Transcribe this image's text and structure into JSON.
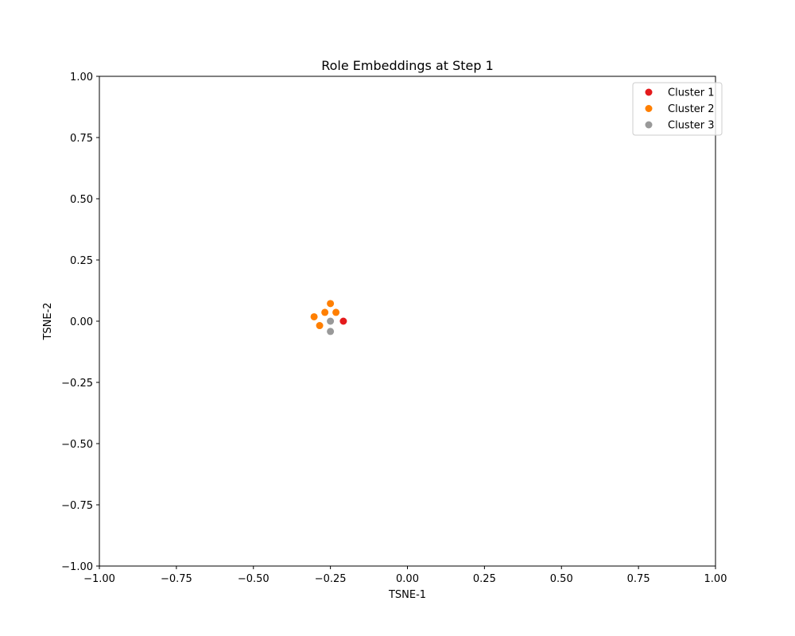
{
  "chart_data": {
    "type": "scatter",
    "title": "Role Embeddings at Step 1",
    "xlabel": "TSNE-1",
    "ylabel": "TSNE-2",
    "xlim": [
      -1.0,
      1.0
    ],
    "ylim": [
      -1.0,
      1.0
    ],
    "xticks": [
      -1.0,
      -0.75,
      -0.5,
      -0.25,
      0.0,
      0.25,
      0.5,
      0.75,
      1.0
    ],
    "yticks": [
      -1.0,
      -0.75,
      -0.5,
      -0.25,
      0.0,
      0.25,
      0.5,
      0.75,
      1.0
    ],
    "xtick_labels": [
      "−1.00",
      "−0.75",
      "−0.50",
      "−0.25",
      "0.00",
      "0.25",
      "0.50",
      "0.75",
      "1.00"
    ],
    "ytick_labels": [
      "−1.00",
      "−0.75",
      "−0.50",
      "−0.25",
      "0.00",
      "0.25",
      "0.50",
      "0.75",
      "1.00"
    ],
    "grid": false,
    "legend_position": "top-right",
    "series": [
      {
        "name": "Cluster 1",
        "color": "#e41a1c",
        "points": [
          [
            -0.208,
            0.0
          ]
        ]
      },
      {
        "name": "Cluster 2",
        "color": "#ff7f00",
        "points": [
          [
            -0.25,
            0.072
          ],
          [
            -0.268,
            0.036
          ],
          [
            -0.232,
            0.036
          ],
          [
            -0.303,
            0.018
          ],
          [
            -0.285,
            -0.018
          ]
        ]
      },
      {
        "name": "Cluster 3",
        "color": "#999999",
        "points": [
          [
            -0.25,
            0.0
          ],
          [
            -0.25,
            -0.042
          ]
        ]
      }
    ]
  }
}
